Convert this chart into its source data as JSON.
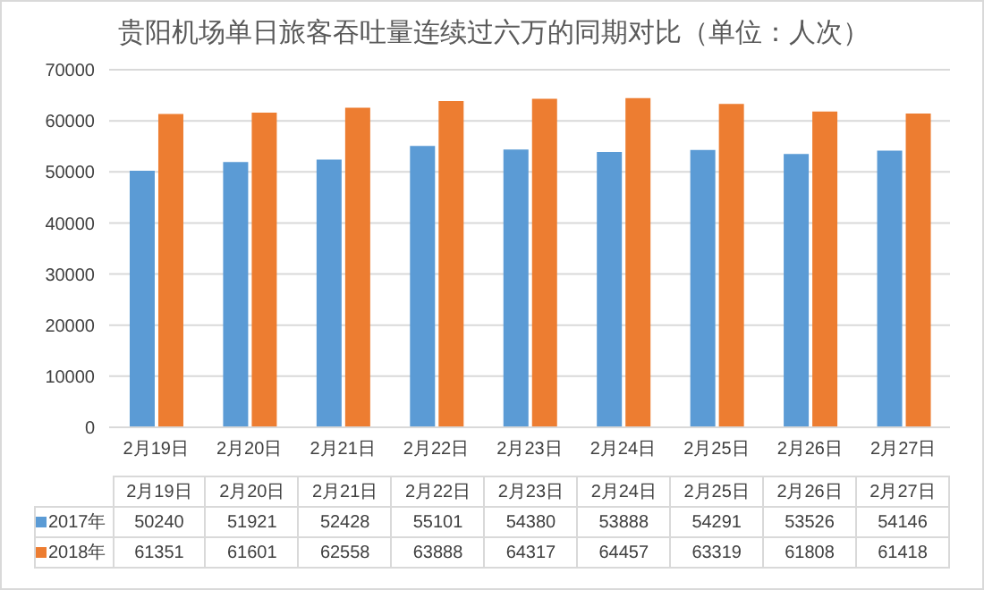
{
  "chart_data": {
    "type": "bar",
    "title": "贵阳机场单日旅客吞吐量连续过六万的同期对比（单位：人次）",
    "categories": [
      "2月19日",
      "2月20日",
      "2月21日",
      "2月22日",
      "2月23日",
      "2月24日",
      "2月25日",
      "2月26日",
      "2月27日"
    ],
    "series": [
      {
        "name": "2017年",
        "color": "#5b9bd5",
        "values": [
          50240,
          51921,
          52428,
          55101,
          54380,
          53888,
          54291,
          53526,
          54146
        ]
      },
      {
        "name": "2018年",
        "color": "#ed7d31",
        "values": [
          61351,
          61601,
          62558,
          63888,
          64317,
          64457,
          63319,
          61808,
          61418
        ]
      }
    ],
    "ylim": [
      0,
      70000
    ],
    "yticks": [
      0,
      10000,
      20000,
      30000,
      40000,
      50000,
      60000,
      70000
    ],
    "grid": "y",
    "legend": "bottom",
    "data_labels": true
  }
}
